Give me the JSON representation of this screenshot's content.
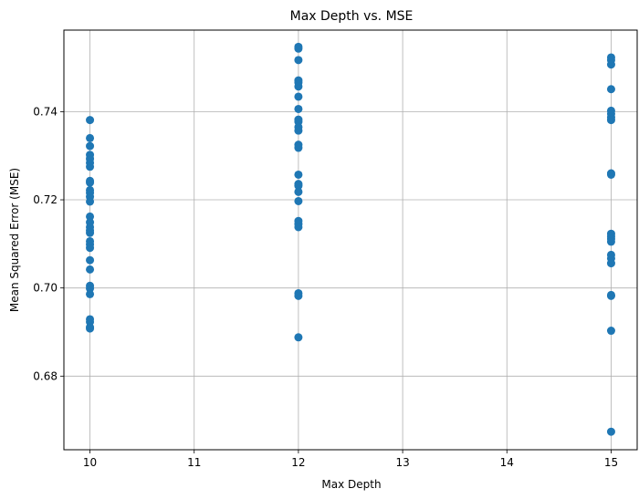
{
  "chart_data": {
    "type": "scatter",
    "title": "Max Depth vs. MSE",
    "xlabel": "Max Depth",
    "ylabel": "Mean Squared Error (MSE)",
    "xlim": [
      9.75,
      15.25
    ],
    "ylim": [
      0.6633,
      0.7585
    ],
    "x_ticks": [
      10,
      11,
      12,
      13,
      14,
      15
    ],
    "y_ticks": [
      0.68,
      0.7,
      0.72,
      0.74
    ],
    "y_tick_labels": [
      "0.68",
      "0.70",
      "0.72",
      "0.74"
    ],
    "grid": true,
    "marker_color": "#1f77b4",
    "points": [
      {
        "x": 10,
        "y": 0.7381
      },
      {
        "x": 10,
        "y": 0.734
      },
      {
        "x": 10,
        "y": 0.7322
      },
      {
        "x": 10,
        "y": 0.7302
      },
      {
        "x": 10,
        "y": 0.7293
      },
      {
        "x": 10,
        "y": 0.7284
      },
      {
        "x": 10,
        "y": 0.7275
      },
      {
        "x": 10,
        "y": 0.7243
      },
      {
        "x": 10,
        "y": 0.7239
      },
      {
        "x": 10,
        "y": 0.7222
      },
      {
        "x": 10,
        "y": 0.7216
      },
      {
        "x": 10,
        "y": 0.7207
      },
      {
        "x": 10,
        "y": 0.7196
      },
      {
        "x": 10,
        "y": 0.7162
      },
      {
        "x": 10,
        "y": 0.7149
      },
      {
        "x": 10,
        "y": 0.7138
      },
      {
        "x": 10,
        "y": 0.7131
      },
      {
        "x": 10,
        "y": 0.7125
      },
      {
        "x": 10,
        "y": 0.7106
      },
      {
        "x": 10,
        "y": 0.7099
      },
      {
        "x": 10,
        "y": 0.7091
      },
      {
        "x": 10,
        "y": 0.7063
      },
      {
        "x": 10,
        "y": 0.7042
      },
      {
        "x": 10,
        "y": 0.7005
      },
      {
        "x": 10,
        "y": 0.6999
      },
      {
        "x": 10,
        "y": 0.6986
      },
      {
        "x": 10,
        "y": 0.6929
      },
      {
        "x": 10,
        "y": 0.6923
      },
      {
        "x": 10,
        "y": 0.6911
      },
      {
        "x": 10,
        "y": 0.6908
      },
      {
        "x": 12,
        "y": 0.7547
      },
      {
        "x": 12,
        "y": 0.7543
      },
      {
        "x": 12,
        "y": 0.7517
      },
      {
        "x": 12,
        "y": 0.7471
      },
      {
        "x": 12,
        "y": 0.7466
      },
      {
        "x": 12,
        "y": 0.7457
      },
      {
        "x": 12,
        "y": 0.7434
      },
      {
        "x": 12,
        "y": 0.7406
      },
      {
        "x": 12,
        "y": 0.7382
      },
      {
        "x": 12,
        "y": 0.7377
      },
      {
        "x": 12,
        "y": 0.7365
      },
      {
        "x": 12,
        "y": 0.7357
      },
      {
        "x": 12,
        "y": 0.7325
      },
      {
        "x": 12,
        "y": 0.7318
      },
      {
        "x": 12,
        "y": 0.7257
      },
      {
        "x": 12,
        "y": 0.7236
      },
      {
        "x": 12,
        "y": 0.7232
      },
      {
        "x": 12,
        "y": 0.7218
      },
      {
        "x": 12,
        "y": 0.7197
      },
      {
        "x": 12,
        "y": 0.7152
      },
      {
        "x": 12,
        "y": 0.7145
      },
      {
        "x": 12,
        "y": 0.7138
      },
      {
        "x": 12,
        "y": 0.6988
      },
      {
        "x": 12,
        "y": 0.6982
      },
      {
        "x": 12,
        "y": 0.6888
      },
      {
        "x": 15,
        "y": 0.7523
      },
      {
        "x": 15,
        "y": 0.7517
      },
      {
        "x": 15,
        "y": 0.7507
      },
      {
        "x": 15,
        "y": 0.7451
      },
      {
        "x": 15,
        "y": 0.7402
      },
      {
        "x": 15,
        "y": 0.7395
      },
      {
        "x": 15,
        "y": 0.7387
      },
      {
        "x": 15,
        "y": 0.7381
      },
      {
        "x": 15,
        "y": 0.726
      },
      {
        "x": 15,
        "y": 0.7257
      },
      {
        "x": 15,
        "y": 0.7123
      },
      {
        "x": 15,
        "y": 0.7117
      },
      {
        "x": 15,
        "y": 0.7111
      },
      {
        "x": 15,
        "y": 0.7105
      },
      {
        "x": 15,
        "y": 0.7075
      },
      {
        "x": 15,
        "y": 0.7067
      },
      {
        "x": 15,
        "y": 0.7056
      },
      {
        "x": 15,
        "y": 0.6984
      },
      {
        "x": 15,
        "y": 0.6982
      },
      {
        "x": 15,
        "y": 0.6903
      },
      {
        "x": 15,
        "y": 0.6674
      }
    ]
  }
}
